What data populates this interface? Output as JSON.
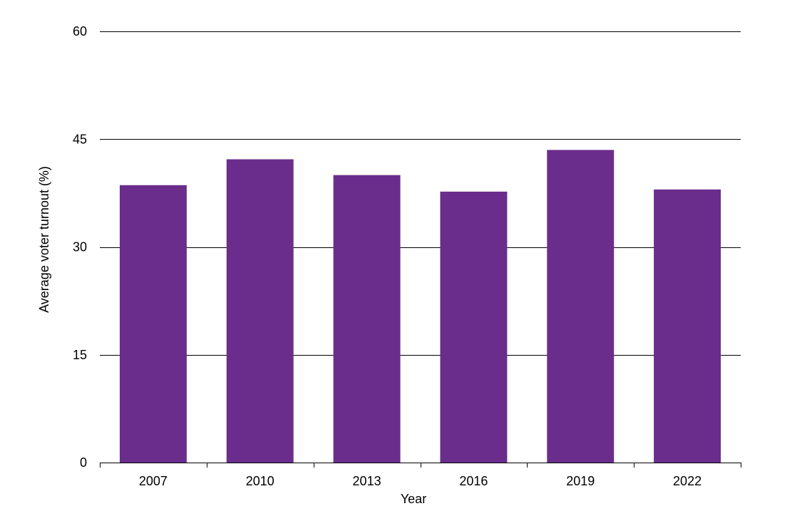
{
  "chart_data": {
    "type": "bar",
    "categories": [
      "2007",
      "2010",
      "2013",
      "2016",
      "2019",
      "2022"
    ],
    "values": [
      38.6,
      42.2,
      40.0,
      37.7,
      43.5,
      38.0
    ],
    "xlabel": "Year",
    "ylabel": "Average voter turnout (%)",
    "ylim": [
      0,
      60
    ],
    "yticks": [
      0,
      15,
      30,
      45,
      60
    ],
    "grid": true,
    "legend": "none",
    "bar_color": "#6B2D8B",
    "gridline_color": "#000000"
  }
}
